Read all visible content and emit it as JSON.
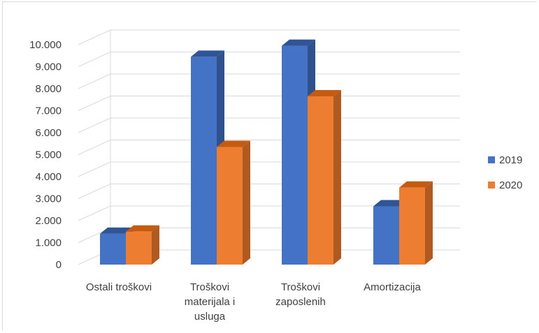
{
  "chart_data": {
    "type": "bar",
    "title": "",
    "xlabel": "",
    "ylabel": "",
    "categories": [
      [
        "Ostali troškovi"
      ],
      [
        "Troškovi",
        "materijala i",
        "usluga"
      ],
      [
        "Troškovi",
        "zaposlenih"
      ],
      [
        "Amortizacija"
      ]
    ],
    "series": [
      {
        "name": "2019",
        "values": [
          1400,
          9450,
          9950,
          2650
        ],
        "color": "#4472c4",
        "side_color": "#2f528f",
        "top_color": "#2f5597"
      },
      {
        "name": "2020",
        "values": [
          1500,
          5350,
          7650,
          3500
        ],
        "color": "#ed7d31",
        "side_color": "#ae5a21",
        "top_color": "#c55a11"
      }
    ],
    "ylim": [
      0,
      10000
    ],
    "yticks": [
      "0",
      "1.000",
      "2.000",
      "3.000",
      "4.000",
      "5.000",
      "6.000",
      "7.000",
      "8.000",
      "9.000",
      "10.000"
    ],
    "grid": true,
    "legend_position": "right",
    "three_d": true
  }
}
